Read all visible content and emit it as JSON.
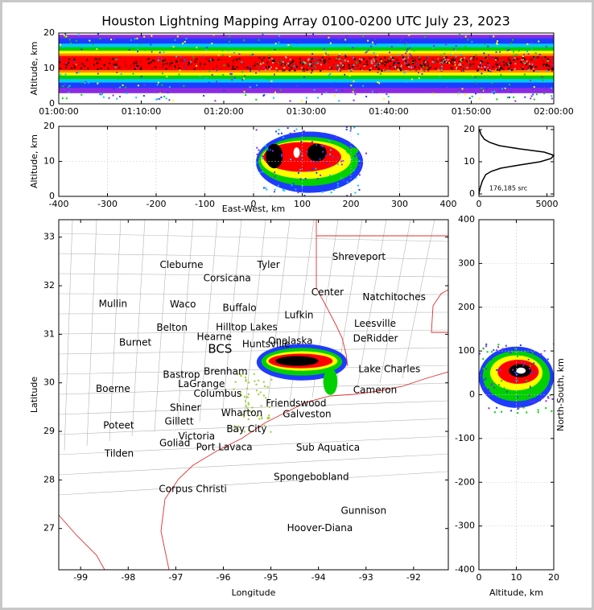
{
  "chart_data": [
    {
      "type": "time_heatmap",
      "title": "Houston Lightning Mapping Array 0100-0200 UTC July 23, 2023",
      "ylabel": "Altitude, km",
      "xlim": [
        3600,
        7200
      ],
      "xticks": [
        {
          "value": 3600,
          "label": "01:00:00"
        },
        {
          "value": 4200,
          "label": "01:10:00"
        },
        {
          "value": 4800,
          "label": "01:20:00"
        },
        {
          "value": 5400,
          "label": "01:30:00"
        },
        {
          "value": 6000,
          "label": "01:40:00"
        },
        {
          "value": 6600,
          "label": "01:50:00"
        },
        {
          "value": 7200,
          "label": "02:00:00"
        }
      ],
      "ylim": [
        0,
        20
      ],
      "yticks": [
        0,
        10,
        20
      ]
    },
    {
      "type": "plan_heatmap",
      "xlabel": "East-West, km",
      "ylabel": "Altitude, km",
      "xlim": [
        -400,
        400
      ],
      "xticks": [
        -400,
        -300,
        -200,
        -100,
        0,
        100,
        200,
        300,
        400
      ],
      "ylim": [
        0,
        20
      ],
      "yticks": [
        0,
        10,
        20
      ],
      "grid": true
    },
    {
      "type": "profile",
      "annotation": "176,185 src",
      "xlim": [
        0,
        5500
      ],
      "xticks": [
        0,
        5000
      ],
      "ylim": [
        -0.75,
        21
      ],
      "yticks": [
        0,
        10,
        20
      ],
      "color": "#000000",
      "values": [
        0,
        100,
        250,
        500,
        900,
        1600,
        3000,
        4500,
        5300,
        5500,
        4800,
        3000,
        1500,
        800,
        400,
        150,
        50
      ],
      "y": [
        0,
        2,
        4,
        6,
        7,
        8,
        9,
        10,
        11,
        12,
        13,
        14,
        15,
        16,
        17,
        18.5,
        20
      ]
    },
    {
      "type": "map",
      "xlabel": "Longitude",
      "ylabel": "Latitude",
      "xlim": [
        -99.46,
        -91.27
      ],
      "xticks": [
        -99,
        -98,
        -97,
        -96,
        -95,
        -94,
        -93,
        -92
      ],
      "ylim": [
        26.15,
        33.36
      ],
      "yticks": [
        27,
        28,
        29,
        30,
        31,
        32,
        33
      ],
      "places": [
        {
          "name": "Cleburne",
          "lon": -96.88,
          "lat": 32.42,
          "color": "#000000"
        },
        {
          "name": "Tyler",
          "lon": -95.05,
          "lat": 32.42,
          "color": "#000000"
        },
        {
          "name": "Shreveport",
          "lon": -93.15,
          "lat": 32.59,
          "color": "#000000"
        },
        {
          "name": "Corsicana",
          "lon": -95.92,
          "lat": 32.15,
          "color": "#000000"
        },
        {
          "name": "Center",
          "lon": -93.81,
          "lat": 31.86,
          "color": "#000000"
        },
        {
          "name": "Natchitoches",
          "lon": -92.41,
          "lat": 31.76,
          "color": "#000000"
        },
        {
          "name": "Mullin",
          "lon": -98.32,
          "lat": 31.62,
          "color": "#f4a460"
        },
        {
          "name": "Waco",
          "lon": -96.85,
          "lat": 31.61,
          "color": "#000000"
        },
        {
          "name": "Buffalo",
          "lon": -95.66,
          "lat": 31.54,
          "color": "#000000"
        },
        {
          "name": "Lufkin",
          "lon": -94.41,
          "lat": 31.39,
          "color": "#000000"
        },
        {
          "name": "Leesville",
          "lon": -92.81,
          "lat": 31.21,
          "color": "#000000"
        },
        {
          "name": "Belton",
          "lon": -97.08,
          "lat": 31.13,
          "color": "#000000"
        },
        {
          "name": "Hilltop Lakes",
          "lon": -95.51,
          "lat": 31.14,
          "color": "#000000"
        },
        {
          "name": "Hearne",
          "lon": -96.19,
          "lat": 30.94,
          "color": "#000000"
        },
        {
          "name": "DeRidder",
          "lon": -92.8,
          "lat": 30.91,
          "color": "#000000"
        },
        {
          "name": "Burnet",
          "lon": -97.85,
          "lat": 30.82,
          "color": "#000000"
        },
        {
          "name": "Huntsville",
          "lon": -95.1,
          "lat": 30.79,
          "color": "#000000"
        },
        {
          "name": "Onalaska",
          "lon": -94.59,
          "lat": 30.86,
          "color": "#000000"
        },
        {
          "name": "BCS",
          "lon": -96.07,
          "lat": 30.69,
          "color": "#8b0000"
        },
        {
          "name": "Lake Charles",
          "lon": -92.51,
          "lat": 30.28,
          "color": "#000000"
        },
        {
          "name": "Bastrop",
          "lon": -96.88,
          "lat": 30.16,
          "color": "#000000"
        },
        {
          "name": "Brenham",
          "lon": -95.95,
          "lat": 30.23,
          "color": "#000000"
        },
        {
          "name": "LaGrange",
          "lon": -96.46,
          "lat": 29.97,
          "color": "#000000"
        },
        {
          "name": "Boerne",
          "lon": -98.32,
          "lat": 29.87,
          "color": "#000000"
        },
        {
          "name": "Columbus",
          "lon": -96.12,
          "lat": 29.77,
          "color": "#000000"
        },
        {
          "name": "Cameron",
          "lon": -92.81,
          "lat": 29.85,
          "color": "#000000"
        },
        {
          "name": "Friendswood",
          "lon": -94.47,
          "lat": 29.57,
          "color": "#000000"
        },
        {
          "name": "Galveston",
          "lon": -94.24,
          "lat": 29.35,
          "color": "#000000"
        },
        {
          "name": "Shiner",
          "lon": -96.8,
          "lat": 29.48,
          "color": "#000000"
        },
        {
          "name": "Wharton",
          "lon": -95.61,
          "lat": 29.37,
          "color": "#000000"
        },
        {
          "name": "Gillett",
          "lon": -96.93,
          "lat": 29.2,
          "color": "#000000"
        },
        {
          "name": "Poteet",
          "lon": -98.2,
          "lat": 29.12,
          "color": "#000000"
        },
        {
          "name": "Bay City",
          "lon": -95.51,
          "lat": 29.04,
          "color": "#000000"
        },
        {
          "name": "Victoria",
          "lon": -96.56,
          "lat": 28.89,
          "color": "#000000"
        },
        {
          "name": "Goliad",
          "lon": -97.02,
          "lat": 28.75,
          "color": "#000000"
        },
        {
          "name": "Port Lavaca",
          "lon": -95.98,
          "lat": 28.67,
          "color": "#000000"
        },
        {
          "name": "Tilden",
          "lon": -98.19,
          "lat": 28.54,
          "color": "#000000"
        },
        {
          "name": "Sub Aquatica",
          "lon": -93.8,
          "lat": 28.66,
          "color": "#0000ff"
        },
        {
          "name": "Spongebobland",
          "lon": -94.15,
          "lat": 28.06,
          "color": "#0000ff"
        },
        {
          "name": "Corpus Christi",
          "lon": -96.64,
          "lat": 27.81,
          "color": "#000000"
        },
        {
          "name": "Gunnison",
          "lon": -93.05,
          "lat": 27.36,
          "color": "#0000ff"
        },
        {
          "name": "Hoover-Diana",
          "lon": -93.97,
          "lat": 27.0,
          "color": "#0000ff"
        }
      ]
    },
    {
      "type": "side_heatmap",
      "xlabel": "Altitude, km",
      "ylabel": "North-South, km",
      "xlim": [
        0,
        20
      ],
      "xticks": [
        0,
        10,
        20
      ],
      "ylim": [
        -400,
        400
      ],
      "yticks": [
        -400,
        -300,
        -200,
        -100,
        0,
        100,
        200,
        300,
        400
      ],
      "grid": true
    }
  ]
}
